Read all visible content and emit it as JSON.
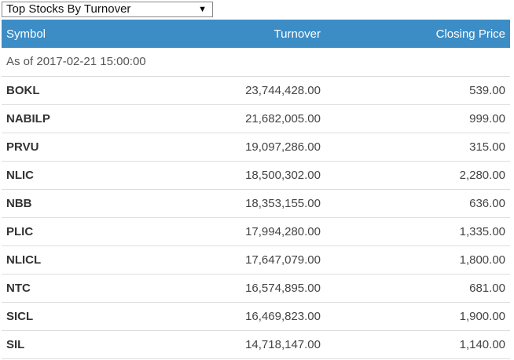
{
  "selector": {
    "selected": "Top Stocks By Turnover",
    "caret": "▼"
  },
  "table": {
    "headers": {
      "symbol": "Symbol",
      "turnover": "Turnover",
      "closing": "Closing Price"
    },
    "as_of": "As of 2017-02-21 15:00:00",
    "rows": [
      {
        "symbol": "BOKL",
        "turnover": "23,744,428.00",
        "closing": "539.00"
      },
      {
        "symbol": "NABILP",
        "turnover": "21,682,005.00",
        "closing": "999.00"
      },
      {
        "symbol": "PRVU",
        "turnover": "19,097,286.00",
        "closing": "315.00"
      },
      {
        "symbol": "NLIC",
        "turnover": "18,500,302.00",
        "closing": "2,280.00"
      },
      {
        "symbol": "NBB",
        "turnover": "18,353,155.00",
        "closing": "636.00"
      },
      {
        "symbol": "PLIC",
        "turnover": "17,994,280.00",
        "closing": "1,335.00"
      },
      {
        "symbol": "NLICL",
        "turnover": "17,647,079.00",
        "closing": "1,800.00"
      },
      {
        "symbol": "NTC",
        "turnover": "16,574,895.00",
        "closing": "681.00"
      },
      {
        "symbol": "SICL",
        "turnover": "16,469,823.00",
        "closing": "1,900.00"
      },
      {
        "symbol": "SIL",
        "turnover": "14,718,147.00",
        "closing": "1,140.00"
      }
    ]
  },
  "colors": {
    "header_bg": "#3c8dc6",
    "header_text": "#ffffff",
    "row_border": "#dddddd"
  }
}
